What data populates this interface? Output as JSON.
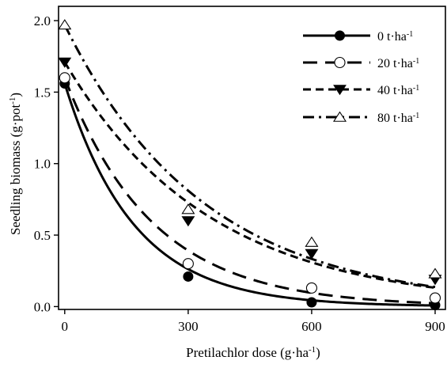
{
  "chart_data": {
    "type": "scatter",
    "title": "",
    "xlabel": "Pretilachlor dose (g·ha",
    "xlabel_sup": "-1",
    "xlabel_end": ")",
    "ylabel": "Seedling biomass (g·pot",
    "ylabel_sup": "-1",
    "ylabel_end": ")",
    "xlim": [
      -15,
      925
    ],
    "ylim": [
      -0.02,
      2.1
    ],
    "xticks": [
      0,
      300,
      600,
      900
    ],
    "xtick_labels": [
      "0",
      "300",
      "600",
      "900"
    ],
    "yticks": [
      0.0,
      0.5,
      1.0,
      1.5,
      2.0
    ],
    "ytick_labels": [
      "0.0",
      "0.5",
      "1.0",
      "1.5",
      "2.0"
    ],
    "grid": false,
    "legend_position": "top-right",
    "series": [
      {
        "name": "0 t·ha",
        "name_sup": "-1",
        "marker": "filled-circle",
        "line": "solid",
        "points": [
          {
            "x": 0,
            "y": 1.56
          },
          {
            "x": 300,
            "y": 0.21
          },
          {
            "x": 600,
            "y": 0.03
          },
          {
            "x": 900,
            "y": 0.01
          }
        ],
        "curve": {
          "a": 1.56,
          "k": 0.00595,
          "c": 0.0
        }
      },
      {
        "name": "20 t·ha",
        "name_sup": "-1",
        "marker": "open-circle",
        "line": "long-dash",
        "points": [
          {
            "x": 0,
            "y": 1.6
          },
          {
            "x": 300,
            "y": 0.3
          },
          {
            "x": 600,
            "y": 0.13
          },
          {
            "x": 900,
            "y": 0.06
          }
        ],
        "curve": {
          "a": 1.6,
          "k": 0.00469,
          "c": 0.0
        }
      },
      {
        "name": "40 t·ha",
        "name_sup": "-1",
        "marker": "filled-triangle-down",
        "line": "short-dash",
        "points": [
          {
            "x": 0,
            "y": 1.71
          },
          {
            "x": 300,
            "y": 0.6
          },
          {
            "x": 600,
            "y": 0.37
          },
          {
            "x": 900,
            "y": 0.19
          }
        ],
        "curve": {
          "a": 1.71,
          "k": 0.00285,
          "c": 0.0
        }
      },
      {
        "name": "80 t·ha",
        "name_sup": "-1",
        "marker": "open-triangle-up",
        "line": "dash-dot",
        "points": [
          {
            "x": 0,
            "y": 1.97
          },
          {
            "x": 300,
            "y": 0.68
          },
          {
            "x": 600,
            "y": 0.45
          },
          {
            "x": 900,
            "y": 0.23
          }
        ],
        "curve": {
          "a": 1.97,
          "k": 0.00296,
          "c": 0.0
        }
      }
    ]
  }
}
